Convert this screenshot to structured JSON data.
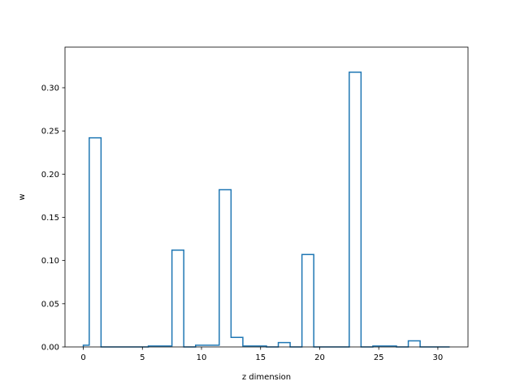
{
  "chart_data": {
    "type": "bar",
    "title": "",
    "xlabel": "z dimension",
    "ylabel": "w",
    "xlim": [
      -1.55,
      32.55
    ],
    "ylim": [
      0,
      0.347
    ],
    "xticks": [
      0,
      5,
      10,
      15,
      20,
      25,
      30
    ],
    "yticks": [
      0.0,
      0.05,
      0.1,
      0.15,
      0.2,
      0.25,
      0.3
    ],
    "ytick_labels": [
      "0.00",
      "0.05",
      "0.10",
      "0.15",
      "0.20",
      "0.25",
      "0.30"
    ],
    "grid": false,
    "style": "step",
    "line_color": "#1f77b4",
    "x": [
      0,
      1,
      2,
      3,
      4,
      5,
      6,
      7,
      8,
      9,
      10,
      11,
      12,
      13,
      14,
      15,
      16,
      17,
      18,
      19,
      20,
      21,
      22,
      23,
      24,
      25,
      26,
      27,
      28,
      29,
      30,
      31
    ],
    "values": [
      0.002,
      0.242,
      0.0,
      0.0,
      0.0,
      0.0,
      0.001,
      0.001,
      0.112,
      0.0,
      0.002,
      0.002,
      0.182,
      0.011,
      0.001,
      0.001,
      0.0,
      0.005,
      0.0,
      0.107,
      0.0,
      0.0,
      0.0,
      0.318,
      0.0,
      0.001,
      0.001,
      0.0,
      0.007,
      0.0,
      0.0,
      0.0
    ]
  }
}
